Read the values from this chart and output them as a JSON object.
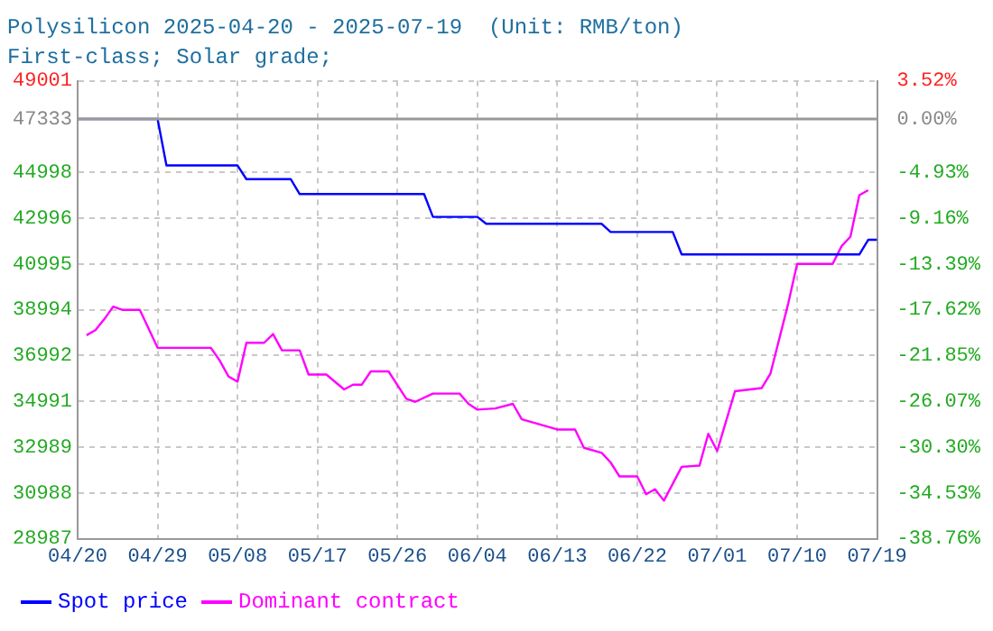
{
  "chart_data": {
    "type": "line",
    "title": "Polysilicon 2025-04-20 - 2025-07-19  (Unit: RMB/ton)",
    "subtitle": "First-class; Solar grade;",
    "xlim": [
      "2025-04-20",
      "2025-07-19"
    ],
    "xticks": [
      {
        "value": "2025-04-20",
        "label": "04/20"
      },
      {
        "value": "2025-04-29",
        "label": "04/29"
      },
      {
        "value": "2025-05-08",
        "label": "05/08"
      },
      {
        "value": "2025-05-17",
        "label": "05/17"
      },
      {
        "value": "2025-05-26",
        "label": "05/26"
      },
      {
        "value": "2025-06-04",
        "label": "06/04"
      },
      {
        "value": "2025-06-13",
        "label": "06/13"
      },
      {
        "value": "2025-06-22",
        "label": "06/22"
      },
      {
        "value": "2025-07-01",
        "label": "07/01"
      },
      {
        "value": "2025-07-10",
        "label": "07/10"
      },
      {
        "value": "2025-07-19",
        "label": "07/19"
      }
    ],
    "ylim": [
      28987,
      49001
    ],
    "yticks": [
      28987,
      30988,
      32989,
      34991,
      36992,
      38994,
      40995,
      42996,
      44998,
      47333,
      49001
    ],
    "y2lim": [
      -38.76,
      3.52
    ],
    "y2ticks": [
      {
        "value": -38.76,
        "label": "-38.76%"
      },
      {
        "value": -34.53,
        "label": "-34.53%"
      },
      {
        "value": -30.3,
        "label": "-30.30%"
      },
      {
        "value": -26.07,
        "label": "-26.07%"
      },
      {
        "value": -21.85,
        "label": "-21.85%"
      },
      {
        "value": -17.62,
        "label": "-17.62%"
      },
      {
        "value": -13.39,
        "label": "-13.39%"
      },
      {
        "value": -9.16,
        "label": "-9.16%"
      },
      {
        "value": -4.93,
        "label": "-4.93%"
      },
      {
        "value": 0,
        "label": "0.00%"
      },
      {
        "value": 3.52,
        "label": "3.52%"
      }
    ],
    "grid": true,
    "legend": "bottom",
    "marker": "none",
    "line_style": "solid",
    "ref_lines": [
      {
        "axis": "y",
        "value": 47333,
        "color": "#999999"
      }
    ],
    "series": [
      {
        "name": "Spot price",
        "color": "#0000ff",
        "x": [
          "2025-04-20",
          "2025-04-29",
          "2025-04-30",
          "2025-05-08",
          "2025-05-09",
          "2025-05-14",
          "2025-05-15",
          "2025-05-29",
          "2025-05-30",
          "2025-06-04",
          "2025-06-05",
          "2025-06-18",
          "2025-06-19",
          "2025-06-26",
          "2025-06-27",
          "2025-07-17",
          "2025-07-18",
          "2025-07-19"
        ],
        "values": [
          47333,
          47333,
          45300,
          45300,
          44700,
          44700,
          44050,
          44050,
          43050,
          43050,
          42750,
          42750,
          42390,
          42390,
          41410,
          41410,
          42050,
          42050
        ]
      },
      {
        "name": "Dominant contract",
        "color": "#ff00ff",
        "x": [
          "2025-04-21",
          "2025-04-22",
          "2025-04-23",
          "2025-04-24",
          "2025-04-25",
          "2025-04-27",
          "2025-04-29",
          "2025-05-05",
          "2025-05-06",
          "2025-05-07",
          "2025-05-08",
          "2025-05-09",
          "2025-05-11",
          "2025-05-12",
          "2025-05-13",
          "2025-05-15",
          "2025-05-16",
          "2025-05-18",
          "2025-05-20",
          "2025-05-21",
          "2025-05-22",
          "2025-05-23",
          "2025-05-25",
          "2025-05-27",
          "2025-05-28",
          "2025-05-30",
          "2025-06-02",
          "2025-06-03",
          "2025-06-04",
          "2025-06-06",
          "2025-06-08",
          "2025-06-09",
          "2025-06-13",
          "2025-06-15",
          "2025-06-16",
          "2025-06-18",
          "2025-06-19",
          "2025-06-20",
          "2025-06-22",
          "2025-06-23",
          "2025-06-24",
          "2025-06-25",
          "2025-06-27",
          "2025-06-29",
          "2025-06-30",
          "2025-07-01",
          "2025-07-03",
          "2025-07-06",
          "2025-07-07",
          "2025-07-09",
          "2025-07-10",
          "2025-07-14",
          "2025-07-15",
          "2025-07-16",
          "2025-07-17",
          "2025-07-18"
        ],
        "values": [
          37880,
          38100,
          38580,
          39130,
          38990,
          38990,
          37330,
          37330,
          36770,
          36070,
          35850,
          37550,
          37550,
          37930,
          37220,
          37220,
          36160,
          36160,
          35510,
          35720,
          35720,
          36300,
          36300,
          35100,
          34970,
          35330,
          35330,
          34880,
          34630,
          34680,
          34880,
          34210,
          33760,
          33760,
          32960,
          32740,
          32320,
          31710,
          31710,
          30930,
          31150,
          30650,
          32130,
          32180,
          33570,
          32820,
          35430,
          35570,
          36210,
          39270,
          40995,
          40995,
          41770,
          42190,
          44000,
          44220
        ]
      }
    ]
  }
}
